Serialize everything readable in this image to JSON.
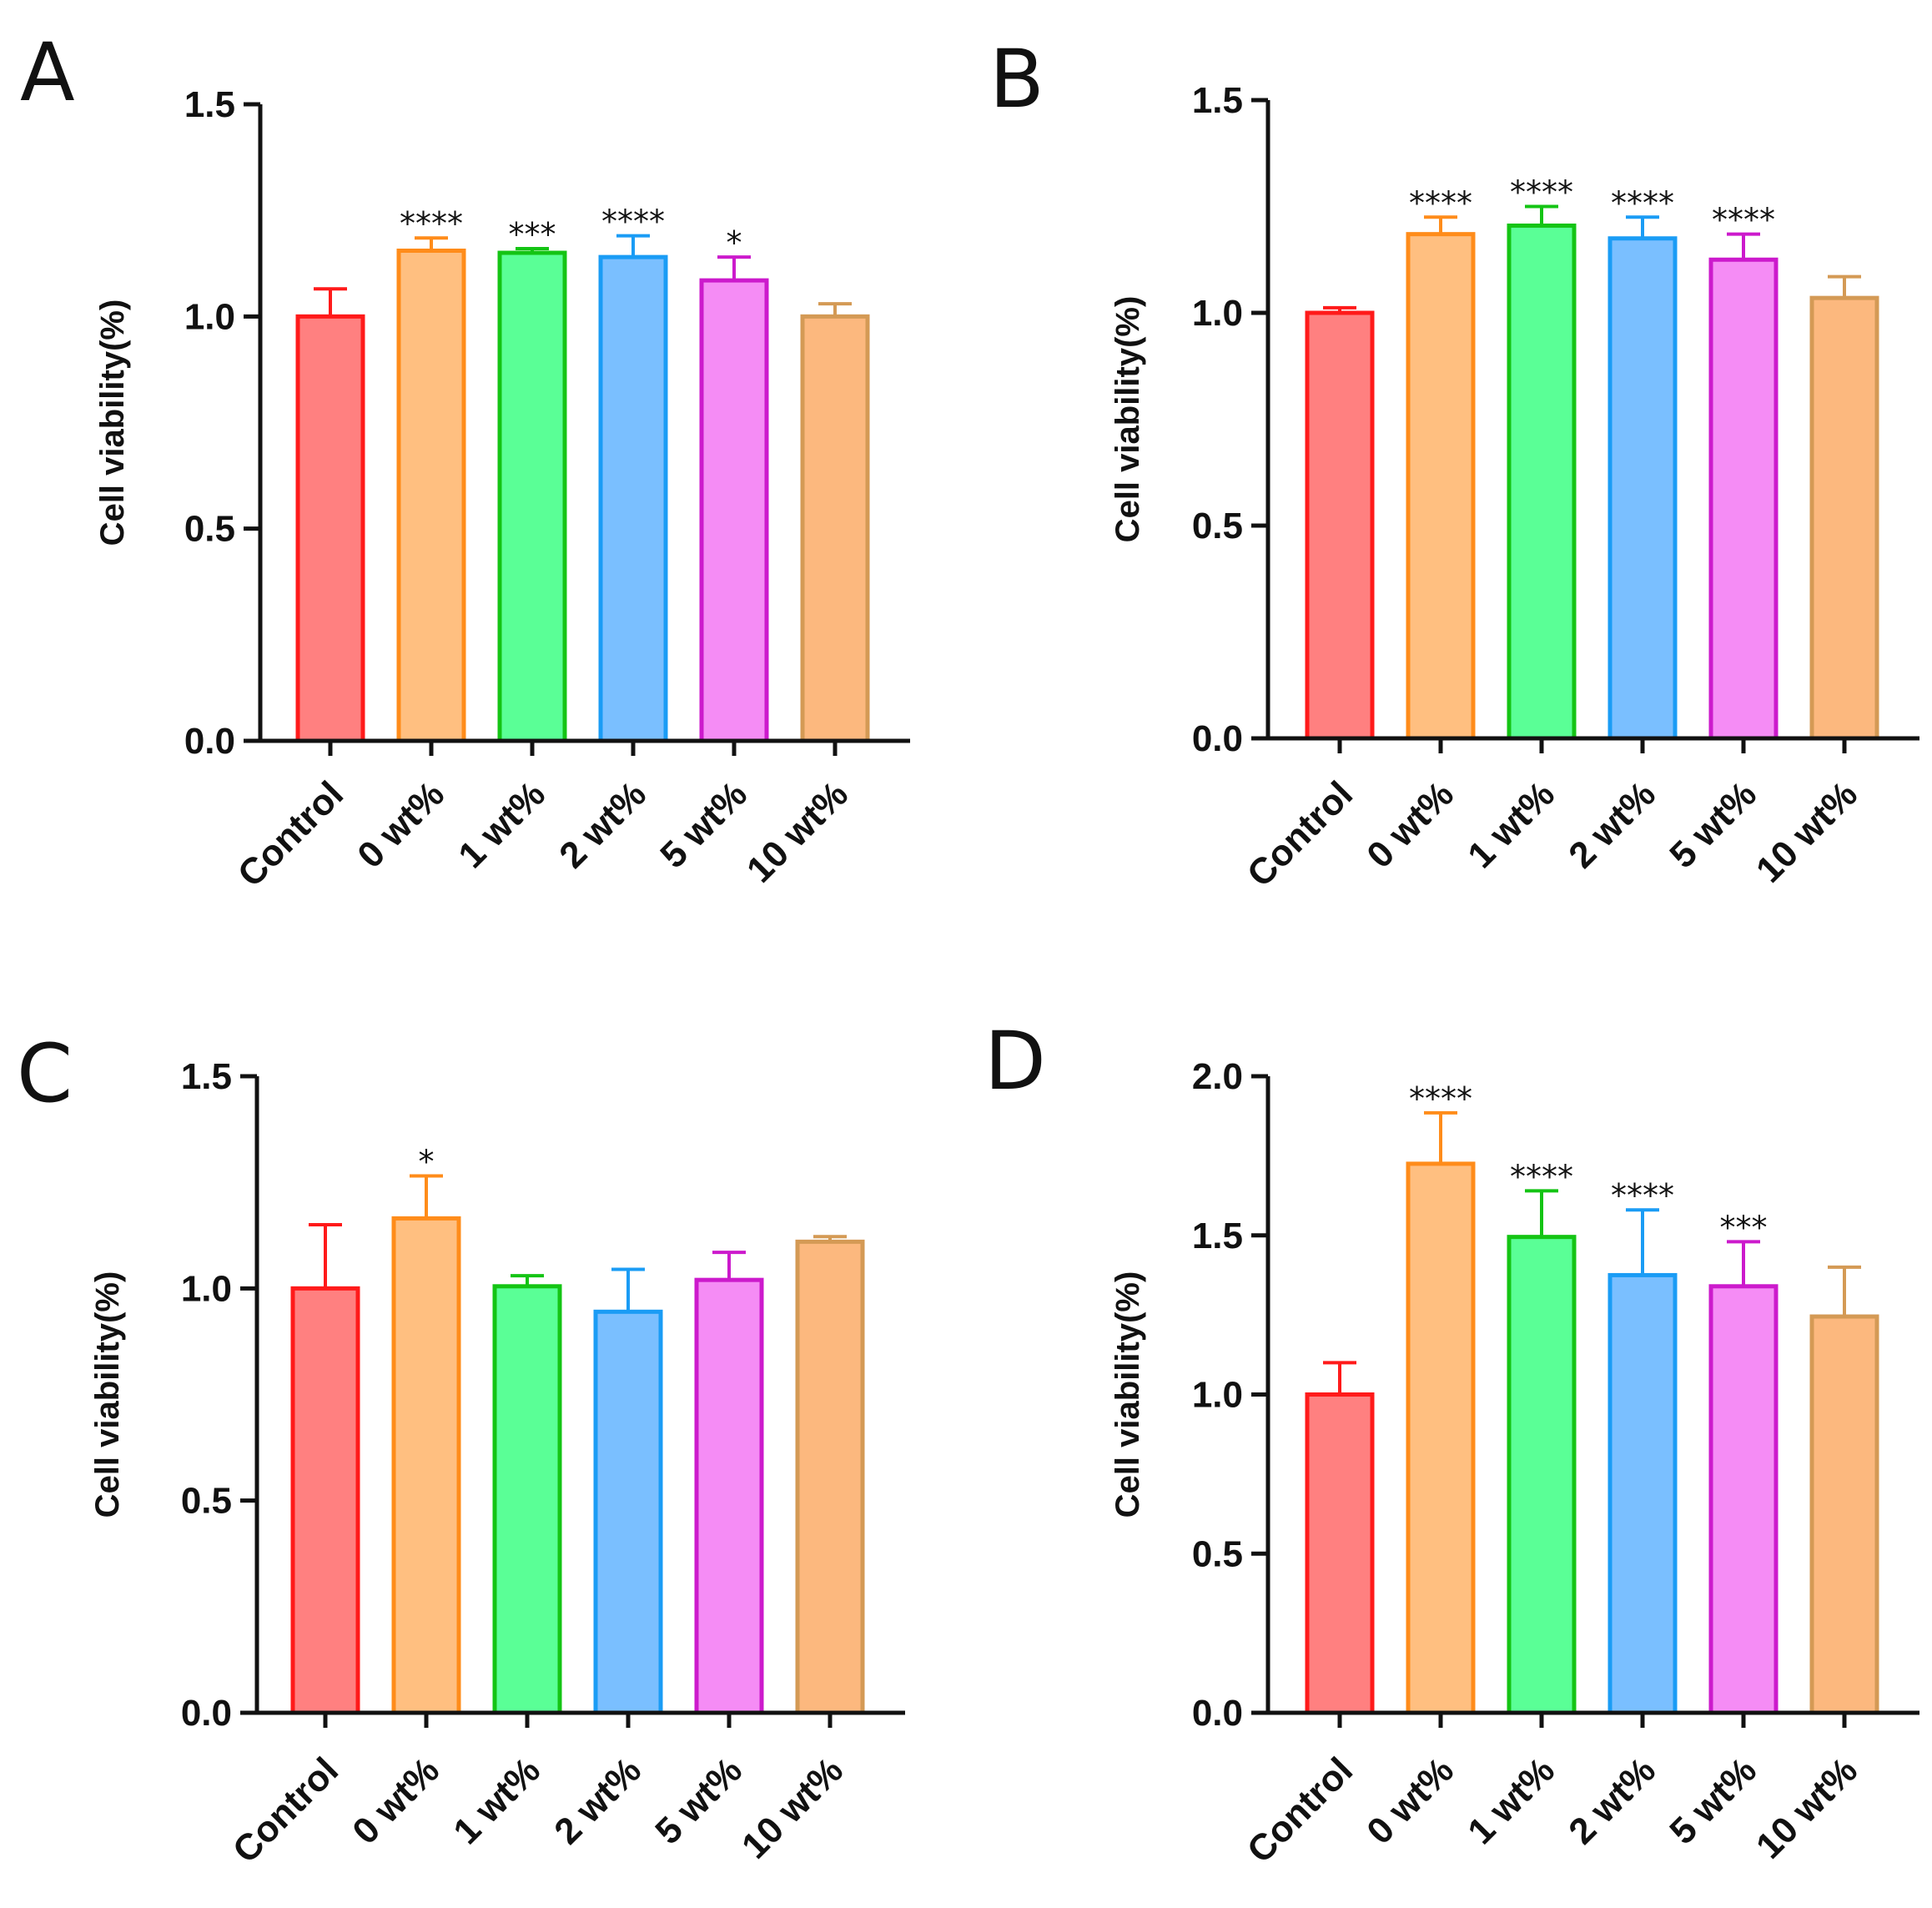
{
  "chart_data": [
    {
      "panel": "A",
      "type": "bar",
      "ylabel": "Cell viability(%)",
      "ylim": [
        0,
        1.5
      ],
      "yticks": [
        "0.0",
        "0.5",
        "1.0",
        "1.5"
      ],
      "categories": [
        "Control",
        "0 wt%",
        "1 wt%",
        "2 wt%",
        "5 wt%",
        "10 wt%"
      ],
      "values": [
        1.0,
        1.155,
        1.15,
        1.14,
        1.085,
        1.0
      ],
      "errors": [
        0.065,
        0.03,
        0.01,
        0.05,
        0.055,
        0.03
      ],
      "significance": [
        "",
        "****",
        "***",
        "****",
        "*",
        ""
      ]
    },
    {
      "panel": "B",
      "type": "bar",
      "ylabel": "Cell viability(%)",
      "ylim": [
        0,
        1.5
      ],
      "yticks": [
        "0.0",
        "0.5",
        "1.0",
        "1.5"
      ],
      "categories": [
        "Control",
        "0 wt%",
        "1 wt%",
        "2 wt%",
        "5 wt%",
        "10 wt%"
      ],
      "values": [
        1.0,
        1.185,
        1.205,
        1.175,
        1.125,
        1.035
      ],
      "errors": [
        0.012,
        0.04,
        0.045,
        0.05,
        0.06,
        0.05
      ],
      "significance": [
        "",
        "****",
        "****",
        "****",
        "****",
        ""
      ]
    },
    {
      "panel": "C",
      "type": "bar",
      "ylabel": "Cell viability(%)",
      "ylim": [
        0,
        1.5
      ],
      "yticks": [
        "0.0",
        "0.5",
        "1.0",
        "1.5"
      ],
      "categories": [
        "Control",
        "0 wt%",
        "1 wt%",
        "2 wt%",
        "5 wt%",
        "10 wt%"
      ],
      "values": [
        1.0,
        1.165,
        1.005,
        0.945,
        1.02,
        1.11
      ],
      "errors": [
        0.15,
        0.1,
        0.025,
        0.1,
        0.065,
        0.012
      ],
      "significance": [
        "",
        "*",
        "",
        "",
        "",
        ""
      ]
    },
    {
      "panel": "D",
      "type": "bar",
      "ylabel": "Cell viability(%)",
      "ylim": [
        0,
        2.0
      ],
      "yticks": [
        "0.0",
        "0.5",
        "1.0",
        "1.5",
        "2.0"
      ],
      "categories": [
        "Control",
        "0 wt%",
        "1 wt%",
        "2 wt%",
        "5 wt%",
        "10 wt%"
      ],
      "values": [
        1.0,
        1.725,
        1.495,
        1.375,
        1.34,
        1.245
      ],
      "errors": [
        0.1,
        0.16,
        0.145,
        0.205,
        0.14,
        0.155
      ],
      "significance": [
        "",
        "****",
        "****",
        "****",
        "***",
        ""
      ]
    }
  ],
  "colors": {
    "fills": [
      "#ff8080",
      "#ffbf80",
      "#5aff96",
      "#7abfff",
      "#f58cf5",
      "#fcb87e"
    ],
    "strokes": [
      "#ff1a1a",
      "#ff8c1a",
      "#14c414",
      "#1a9cf5",
      "#cc1acc",
      "#d49a55"
    ],
    "axis": "#111111"
  }
}
